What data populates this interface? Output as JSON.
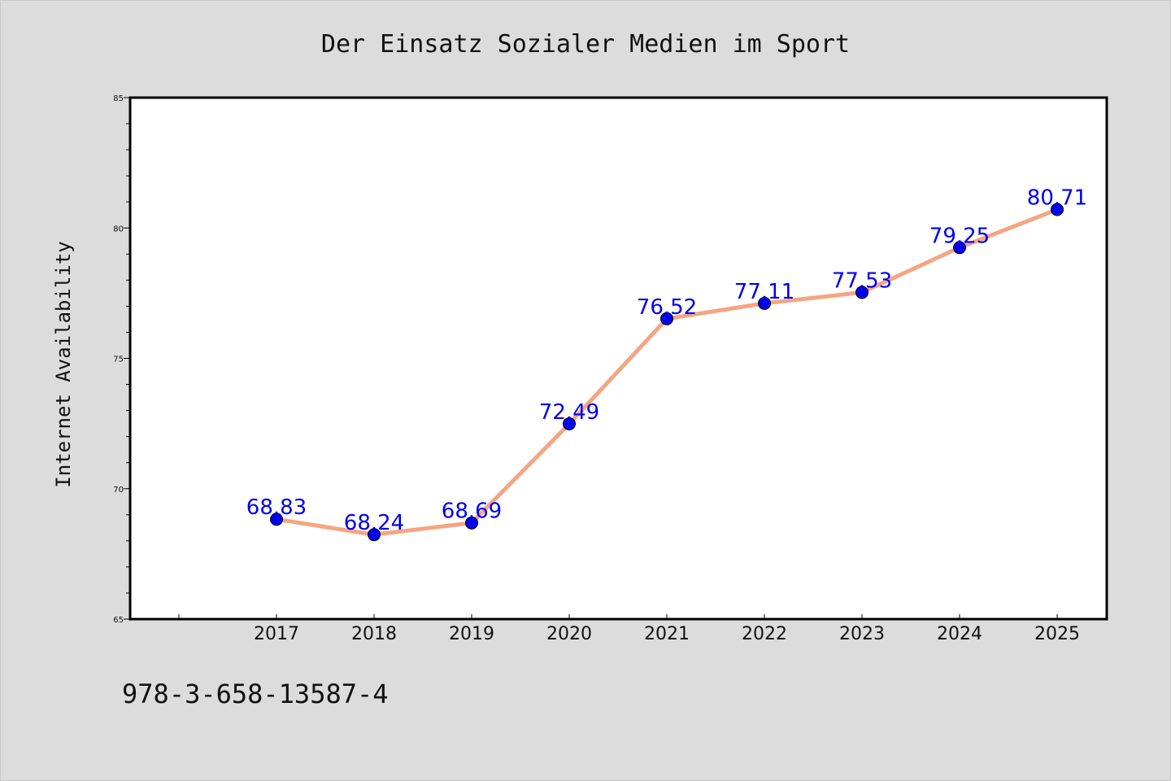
{
  "chart_data": {
    "type": "line",
    "title": "Der Einsatz Sozialer Medien im Sport",
    "xlabel": "",
    "ylabel": "Internet Availability",
    "categories": [
      "2017",
      "2018",
      "2019",
      "2020",
      "2021",
      "2022",
      "2023",
      "2024",
      "2025"
    ],
    "series": [
      {
        "values": [
          68.83,
          68.24,
          68.69,
          72.49,
          76.52,
          77.11,
          77.53,
          79.25,
          80.71
        ]
      }
    ],
    "ylim": [
      65,
      85
    ],
    "y_ticks": [
      "65",
      "70",
      "75",
      "80",
      "85"
    ],
    "data_labels": [
      "68.83",
      "68.24",
      "68.69",
      "72.49",
      "76.52",
      "77.11",
      "77.53",
      "79.25",
      "80.71"
    ],
    "grid": false,
    "legend": "none",
    "colors": {
      "line": "#f4a582",
      "marker": "#0000ee",
      "label": "#0000ee",
      "background": "#dcdcdc",
      "plot_background": "#ffffff"
    }
  },
  "footer": {
    "isbn": "978-3-658-13587-4"
  }
}
